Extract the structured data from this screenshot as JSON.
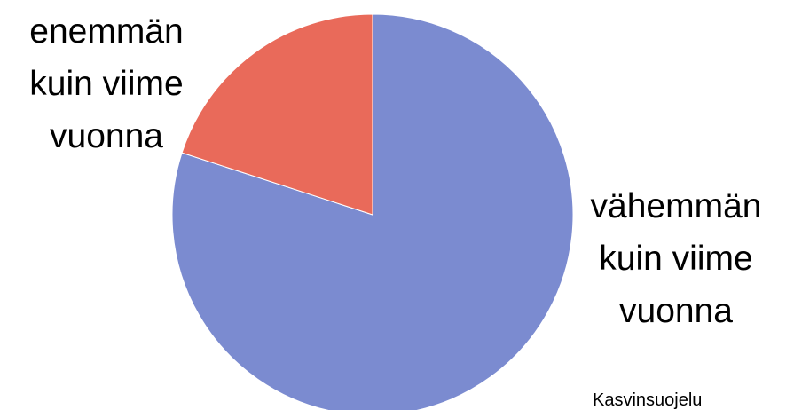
{
  "chart_data": {
    "type": "pie",
    "categories": [
      "vähemmän\nkuin viime\nvuonna",
      "enemmän\nkuin viime\nvuonna"
    ],
    "values": [
      80,
      20
    ],
    "colors": [
      "#7b8bd0",
      "#e96a5a"
    ],
    "note": "Kasvinsuojelu"
  }
}
